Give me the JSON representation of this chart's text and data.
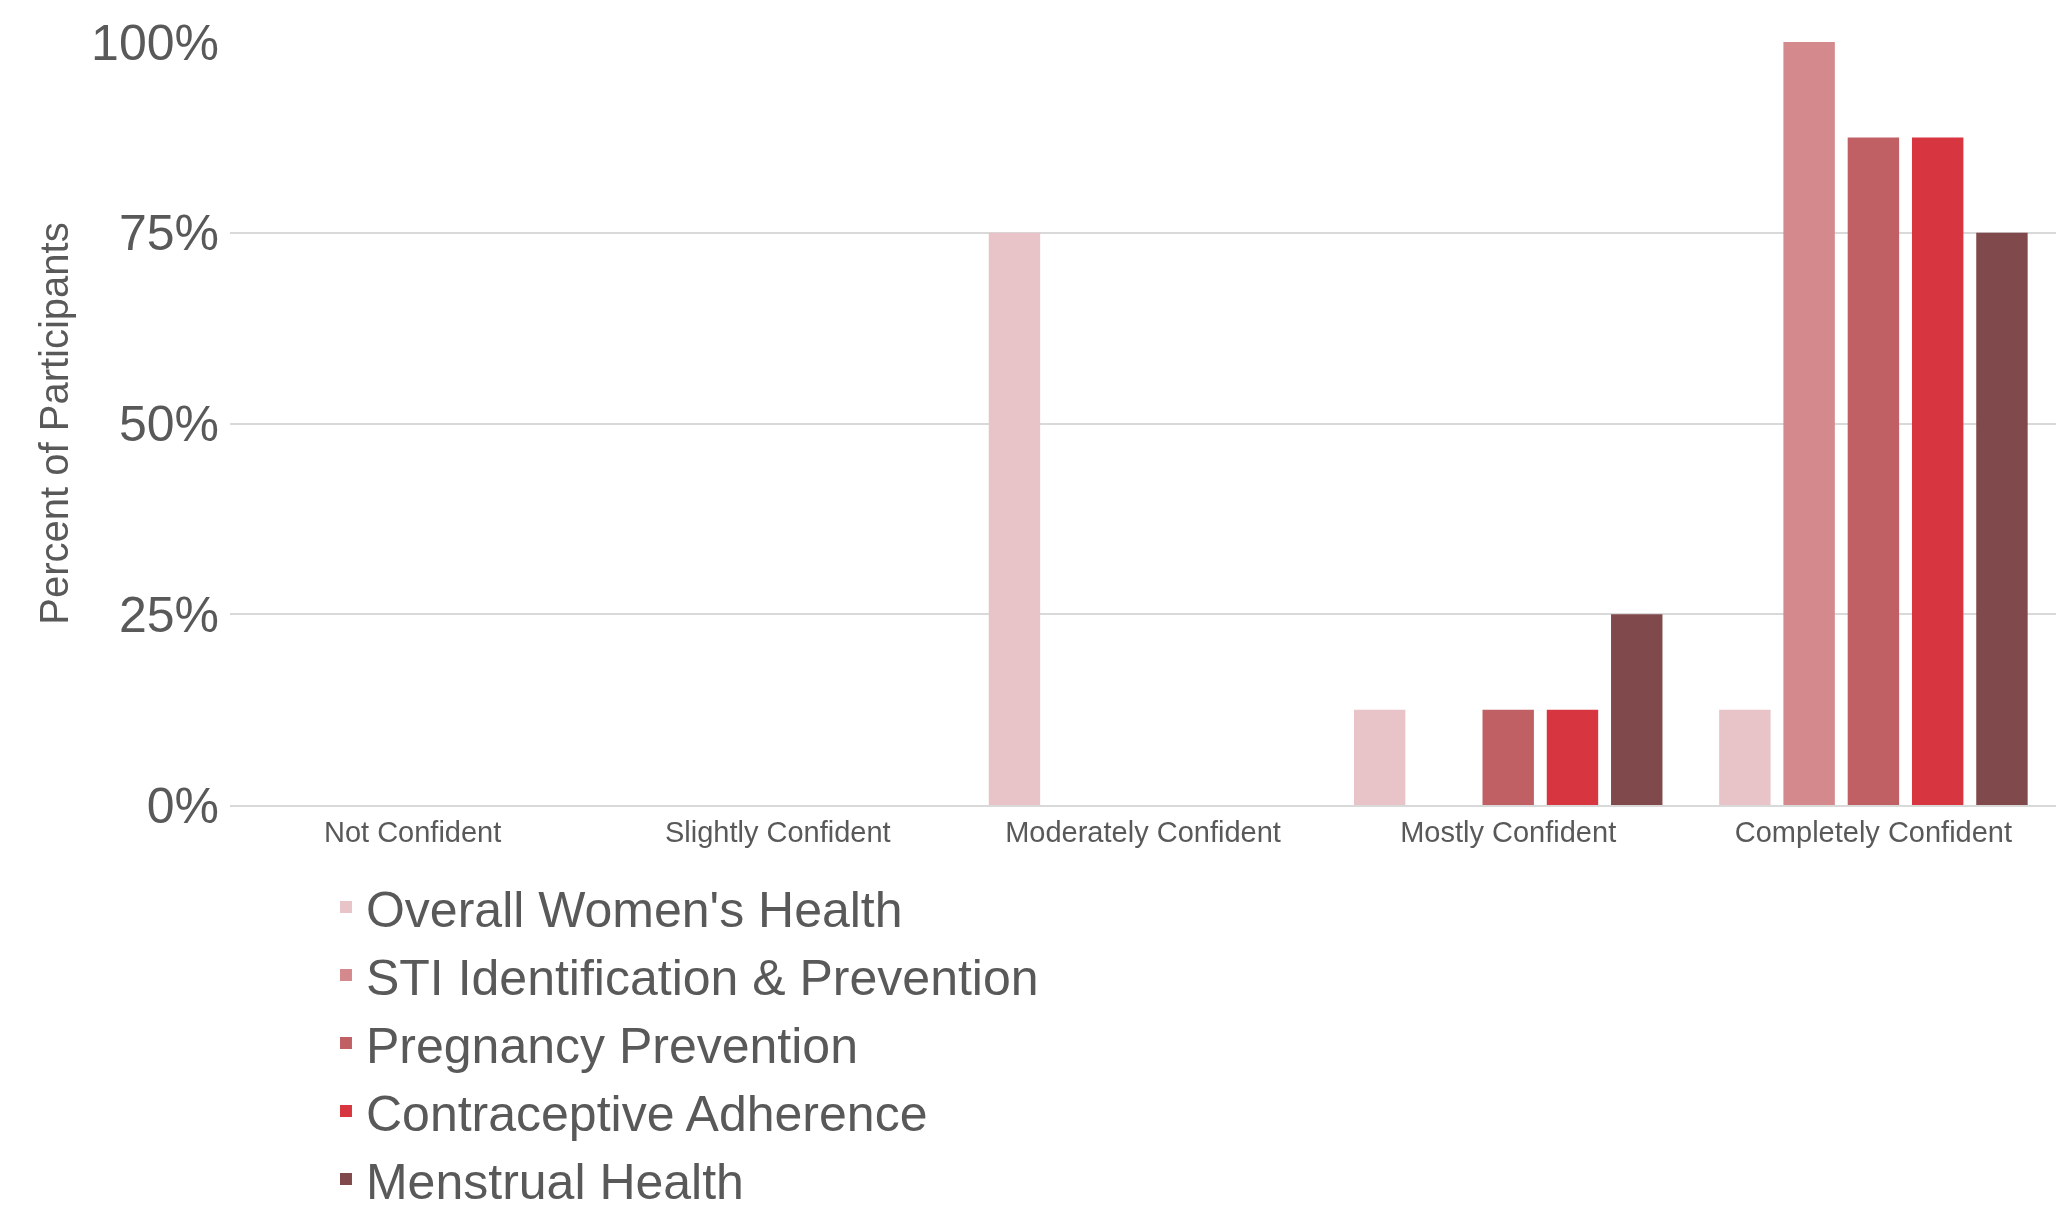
{
  "chart_data": {
    "type": "bar",
    "ylabel": "Percent of Participants",
    "categories": [
      "Not Confident",
      "Slightly Confident",
      "Moderately Confident",
      "Mostly Confident",
      "Completely Confident"
    ],
    "series": [
      {
        "name": "Overall Women's Health",
        "color": "#e8c4c8",
        "values": [
          0,
          0,
          75,
          12.5,
          12.5
        ]
      },
      {
        "name": "STI Identification & Prevention",
        "color": "#d48a8c",
        "values": [
          0,
          0,
          0,
          0,
          100
        ]
      },
      {
        "name": "Pregnancy Prevention",
        "color": "#c06064",
        "values": [
          0,
          0,
          0,
          12.5,
          87.5
        ]
      },
      {
        "name": "Contraceptive Adherence",
        "color": "#d73540",
        "values": [
          0,
          0,
          0,
          12.5,
          87.5
        ]
      },
      {
        "name": "Menstrual Health",
        "color": "#80494b",
        "values": [
          0,
          0,
          0,
          25,
          75
        ]
      }
    ],
    "ylim": [
      0,
      100
    ],
    "yticks": [
      {
        "value": 0,
        "label": "0%"
      },
      {
        "value": 25,
        "label": "25%"
      },
      {
        "value": 50,
        "label": "50%"
      },
      {
        "value": 75,
        "label": "75%"
      },
      {
        "value": 100,
        "label": "100%"
      }
    ],
    "grid": "y",
    "legend": "bottom"
  }
}
